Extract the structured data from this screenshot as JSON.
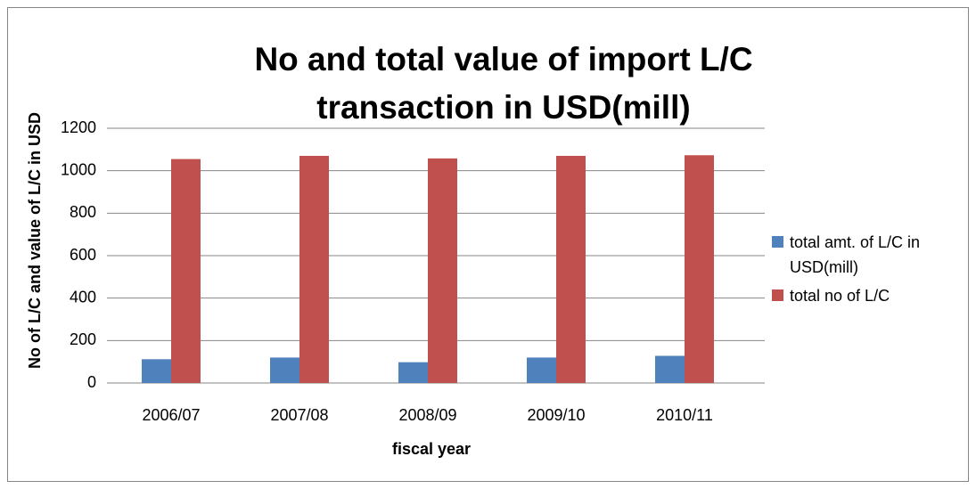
{
  "chart_data": {
    "type": "bar",
    "title": "No and total value of import L/C transaction in USD(mill)",
    "xlabel": "fiscal year",
    "ylabel": "No of L/C and value of L/C in USD",
    "categories": [
      "2006/07",
      "2007/08",
      "2008/09",
      "2009/10",
      "2010/11"
    ],
    "series": [
      {
        "name": "total amt. of L/C in USD(mill)",
        "color": "#4f81bd",
        "values": [
          112,
          120,
          98,
          120,
          128
        ]
      },
      {
        "name": "total no of L/C",
        "color": "#c0504d",
        "values": [
          1055,
          1070,
          1058,
          1070,
          1073
        ]
      }
    ],
    "ylim": [
      0,
      1200
    ],
    "yticks": [
      0,
      200,
      400,
      600,
      800,
      1000,
      1200
    ],
    "grid": true,
    "legend": "right"
  }
}
